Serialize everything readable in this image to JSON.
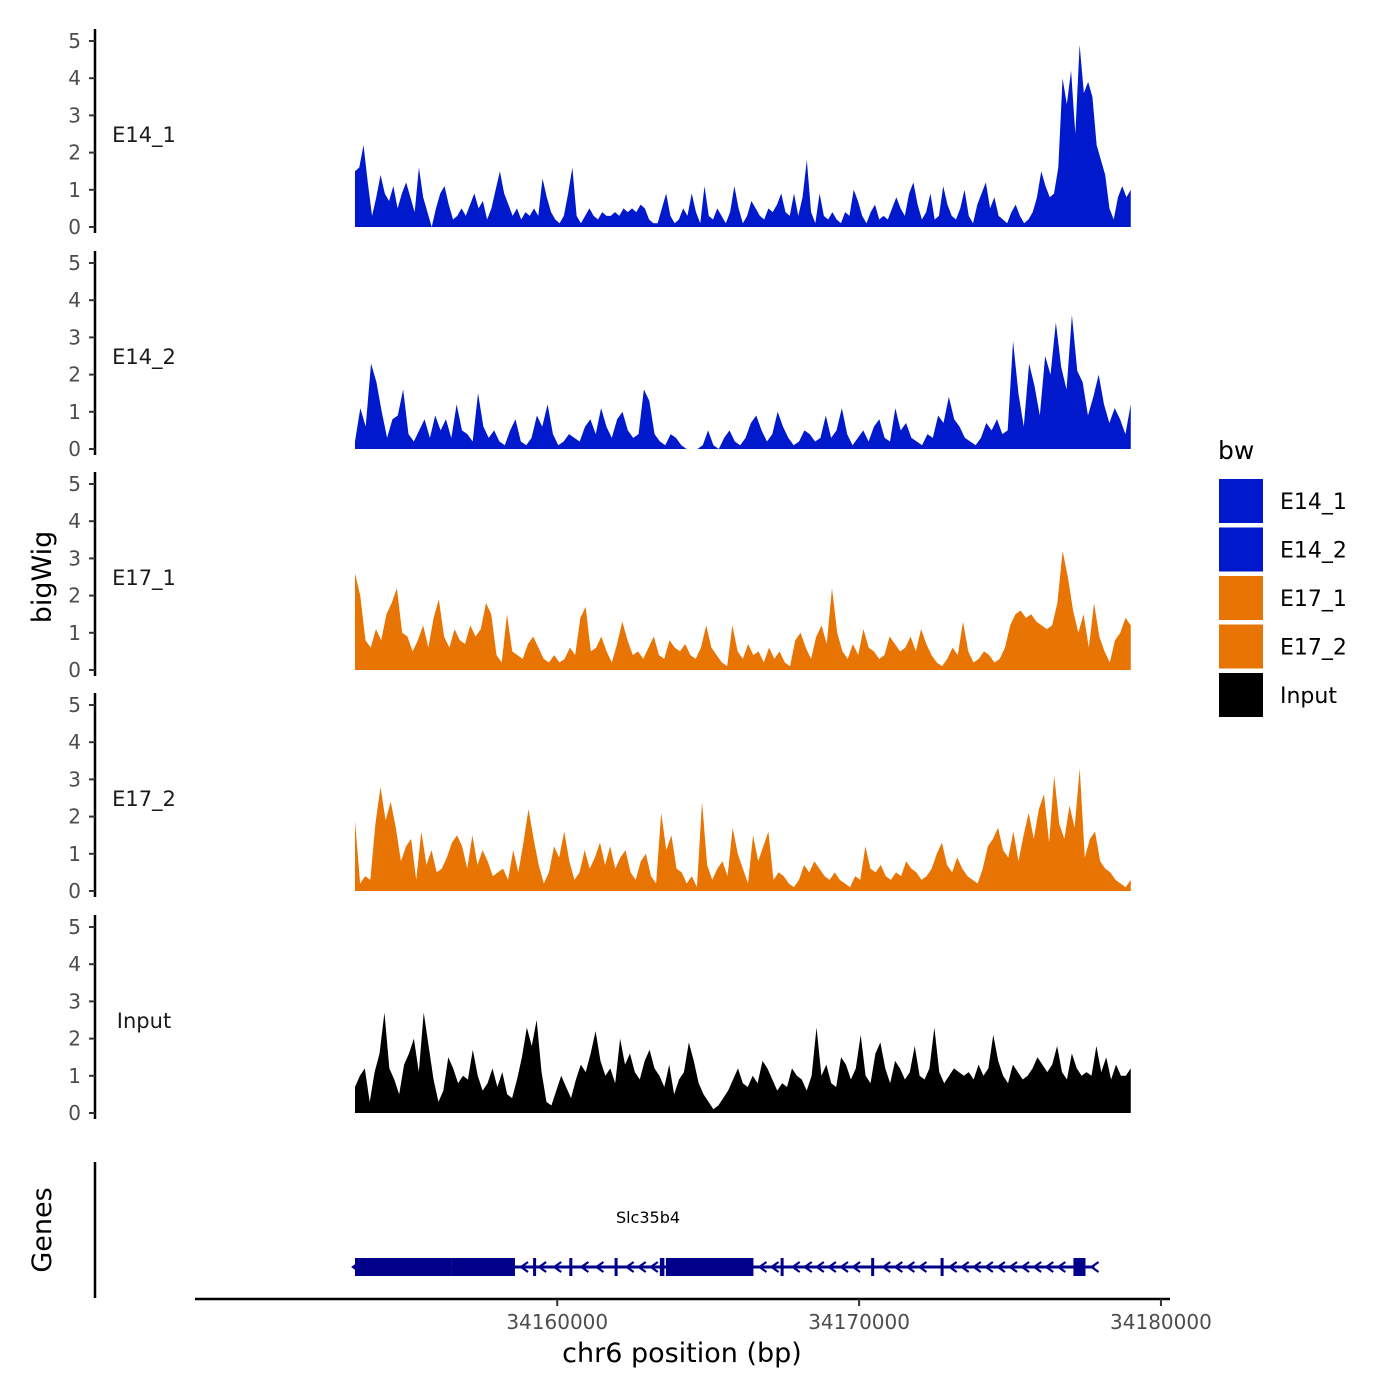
{
  "chart_data": {
    "type": "area",
    "chromosome": "chr6",
    "xlabel": "chr6 position (bp)",
    "ylabel": "bigWig",
    "genes_label": "Genes",
    "x_range": [
      34153300,
      34179000
    ],
    "axis_x_range": [
      34148000,
      34180300
    ],
    "x_ticks": [
      34160000,
      34170000,
      34180000
    ],
    "x_tick_labels": [
      "34160000",
      "34170000",
      "34180000"
    ],
    "y_range": [
      0,
      5
    ],
    "y_ticks": [
      0,
      1,
      2,
      3,
      4,
      5
    ],
    "y_tick_labels": [
      "0",
      "1",
      "2",
      "3",
      "4",
      "5"
    ],
    "legend": {
      "title": "bw",
      "entries": [
        {
          "label": "E14_1",
          "color": "#0019CC"
        },
        {
          "label": "E14_2",
          "color": "#0019CC"
        },
        {
          "label": "E17_1",
          "color": "#E87404"
        },
        {
          "label": "E17_2",
          "color": "#E87404"
        },
        {
          "label": "Input",
          "color": "#000000"
        }
      ]
    },
    "tracks": [
      {
        "name": "E14_1",
        "color": "#0019CC",
        "values": [
          1.5,
          1.6,
          2.2,
          1.2,
          0.3,
          0.8,
          1.4,
          0.9,
          0.7,
          1.1,
          0.5,
          0.9,
          1.2,
          0.8,
          0.4,
          1.6,
          0.8,
          0.4,
          0,
          0.5,
          0.9,
          1.1,
          0.6,
          0.2,
          0.3,
          0.5,
          0.3,
          0.6,
          0.9,
          0.5,
          0.7,
          0.2,
          0.5,
          1.0,
          1.5,
          0.9,
          0.6,
          0.3,
          0.5,
          0.2,
          0.4,
          0.3,
          0.5,
          0.3,
          1.3,
          0.8,
          0.4,
          0.2,
          0.1,
          0.3,
          0.9,
          1.6,
          0.3,
          0.1,
          0.3,
          0.5,
          0.3,
          0.2,
          0.4,
          0.3,
          0.3,
          0.4,
          0.3,
          0.5,
          0.4,
          0.5,
          0.4,
          0.6,
          0.5,
          0.2,
          0.1,
          0.1,
          0.5,
          0.9,
          0.3,
          0.1,
          0.2,
          0.5,
          0.3,
          0.9,
          0.4,
          0.1,
          1.1,
          0.3,
          0.2,
          0.5,
          0.3,
          0.1,
          0.4,
          1.1,
          0.5,
          0.1,
          0.3,
          0.7,
          0.5,
          0.3,
          0.2,
          0.5,
          0.4,
          0.6,
          0.9,
          0.4,
          0.3,
          0.9,
          0.3,
          0.8,
          1.8,
          0.4,
          0.1,
          0.9,
          0.3,
          0.2,
          0.4,
          0.2,
          0.1,
          0.4,
          0.3,
          1.0,
          0.7,
          0.3,
          0.1,
          0.4,
          0.6,
          0.2,
          0.3,
          0.2,
          0.5,
          0.8,
          0.5,
          0.3,
          0.9,
          1.2,
          0.6,
          0.2,
          0.4,
          0.9,
          0.2,
          0.3,
          1.1,
          0.6,
          0.3,
          0.2,
          0.5,
          1.0,
          0.3,
          0.1,
          0.6,
          0.9,
          1.2,
          0.5,
          0.8,
          0.3,
          0.2,
          0.1,
          0.4,
          0.6,
          0.3,
          0.1,
          0.2,
          0.4,
          0.8,
          1.5,
          1.1,
          0.8,
          0.9,
          1.6,
          4.0,
          3.3,
          4.2,
          2.5,
          4.9,
          3.6,
          3.9,
          3.5,
          2.2,
          1.8,
          1.4,
          0.5,
          0.2,
          0.8,
          1.1,
          0.8,
          1.0
        ]
      },
      {
        "name": "E14_2",
        "color": "#0019CC",
        "values": [
          0.2,
          1.1,
          0.6,
          2.3,
          1.8,
          1.0,
          0.3,
          0.8,
          0.9,
          1.6,
          0.4,
          0.2,
          0.5,
          0.8,
          0.3,
          0.9,
          0.5,
          0.8,
          0.3,
          1.2,
          0.5,
          0.4,
          0.2,
          1.5,
          0.6,
          0.3,
          0.5,
          0.2,
          0.1,
          0.5,
          0.8,
          0.2,
          0.1,
          0.3,
          0.9,
          0.6,
          1.2,
          0.4,
          0.1,
          0.2,
          0.4,
          0.3,
          0.2,
          0.6,
          0.8,
          0.4,
          1.1,
          0.6,
          0.3,
          0.8,
          1.0,
          0.5,
          0.3,
          0.4,
          1.6,
          1.3,
          0.4,
          0.2,
          0.1,
          0.4,
          0.3,
          0.1,
          0,
          0,
          0,
          0.1,
          0.5,
          0.1,
          0,
          0.3,
          0.5,
          0.2,
          0.1,
          0.3,
          0.7,
          0.9,
          0.5,
          0.2,
          0.4,
          1.0,
          0.6,
          0.3,
          0.1,
          0.2,
          0.5,
          0.4,
          0.2,
          0.3,
          0.9,
          0.3,
          0.5,
          1.1,
          0.4,
          0.1,
          0.3,
          0.5,
          0.2,
          0.6,
          0.8,
          0.3,
          0.2,
          1.1,
          0.5,
          0.7,
          0.3,
          0.2,
          0.1,
          0.4,
          0.3,
          0.9,
          0.7,
          1.4,
          0.8,
          0.6,
          0.3,
          0.2,
          0.1,
          0.3,
          0.7,
          0.5,
          0.8,
          0.4,
          0.5,
          2.9,
          1.5,
          0.6,
          2.3,
          1.7,
          0.9,
          2.5,
          2.0,
          3.4,
          2.2,
          1.6,
          3.6,
          2.1,
          1.8,
          0.9,
          1.4,
          2.0,
          1.2,
          0.7,
          1.1,
          0.8,
          0.4,
          1.2
        ]
      },
      {
        "name": "E17_1",
        "color": "#E87404",
        "values": [
          2.6,
          2.0,
          0.8,
          0.6,
          1.1,
          0.8,
          1.5,
          1.8,
          2.2,
          1.0,
          0.9,
          0.5,
          0.8,
          1.2,
          0.6,
          1.4,
          1.9,
          0.9,
          0.6,
          1.1,
          0.8,
          0.7,
          1.2,
          0.9,
          1.1,
          1.8,
          1.5,
          0.4,
          0.2,
          1.5,
          0.5,
          0.4,
          0.3,
          0.7,
          0.9,
          0.6,
          0.3,
          0.2,
          0.4,
          0.2,
          0.3,
          0.6,
          0.4,
          1.4,
          1.7,
          0.5,
          0.6,
          0.9,
          0.5,
          0.2,
          0.7,
          1.3,
          0.8,
          0.4,
          0.5,
          0.3,
          0.6,
          0.9,
          0.4,
          0.3,
          0.8,
          0.6,
          0.5,
          0.7,
          0.4,
          0.3,
          0.6,
          1.2,
          0.6,
          0.4,
          0.2,
          0.1,
          1.2,
          0.5,
          0.3,
          0.7,
          0.4,
          0.5,
          0.2,
          0.6,
          0.3,
          0.5,
          0.2,
          0.1,
          0.8,
          1.0,
          0.6,
          0.3,
          0.9,
          1.2,
          0.7,
          2.2,
          1.0,
          0.5,
          0.3,
          0.7,
          0.4,
          1.1,
          0.6,
          0.5,
          0.3,
          0.4,
          0.9,
          0.7,
          0.5,
          0.6,
          0.9,
          0.5,
          1.1,
          0.7,
          0.4,
          0.2,
          0.1,
          0.3,
          0.6,
          0.4,
          1.3,
          0.5,
          0.2,
          0.3,
          0.5,
          0.4,
          0.2,
          0.3,
          0.6,
          1.2,
          1.5,
          1.6,
          1.4,
          1.5,
          1.3,
          1.2,
          1.1,
          1.2,
          1.8,
          3.2,
          2.5,
          1.6,
          1.0,
          1.5,
          0.6,
          1.8,
          0.9,
          0.5,
          0.2,
          0.8,
          1.0,
          1.4,
          1.2
        ]
      },
      {
        "name": "E17_2",
        "color": "#E87404",
        "values": [
          1.9,
          0.2,
          0.4,
          0.3,
          1.8,
          2.8,
          1.9,
          2.4,
          1.7,
          0.8,
          1.2,
          1.4,
          0.3,
          1.6,
          0.7,
          1.1,
          0.5,
          0.6,
          0.9,
          1.3,
          1.5,
          1.2,
          0.6,
          1.5,
          0.7,
          1.1,
          0.8,
          0.4,
          0.5,
          0.6,
          0.3,
          1.1,
          0.5,
          1.3,
          2.2,
          1.4,
          0.7,
          0.2,
          0.5,
          1.2,
          0.9,
          1.6,
          0.8,
          0.3,
          0.5,
          1.1,
          0.6,
          0.9,
          1.3,
          0.7,
          1.2,
          0.6,
          0.9,
          1.1,
          0.5,
          0.3,
          0.8,
          1.0,
          0.4,
          0.2,
          2.1,
          1.1,
          1.5,
          0.6,
          0.5,
          0.2,
          0.4,
          0.1,
          2.4,
          0.7,
          0.3,
          0.6,
          0.8,
          0.4,
          1.7,
          1.0,
          0.6,
          0.2,
          1.5,
          0.8,
          1.2,
          1.6,
          0.3,
          0.5,
          0.4,
          0.2,
          0.1,
          0.3,
          0.7,
          0.5,
          0.8,
          0.6,
          0.4,
          0.3,
          0.5,
          0.3,
          0.2,
          0.1,
          0.4,
          0.3,
          1.2,
          0.6,
          0.5,
          0.7,
          0.4,
          0.3,
          0.5,
          0.4,
          0.8,
          0.6,
          0.5,
          0.3,
          0.4,
          0.6,
          1.0,
          1.3,
          0.7,
          0.5,
          0.9,
          0.6,
          0.4,
          0.3,
          0.2,
          0.6,
          1.2,
          1.4,
          1.7,
          1.1,
          0.9,
          1.6,
          0.8,
          1.5,
          2.1,
          1.4,
          2.2,
          2.6,
          1.3,
          3.1,
          1.8,
          1.4,
          2.3,
          1.7,
          3.3,
          0.9,
          1.4,
          1.6,
          0.8,
          0.6,
          0.5,
          0.3,
          0.2,
          0.1,
          0.3
        ]
      },
      {
        "name": "Input",
        "color": "#000000",
        "values": [
          0.7,
          1.0,
          1.2,
          0.3,
          1.1,
          1.6,
          2.7,
          1.2,
          0.9,
          0.5,
          1.3,
          1.6,
          2.0,
          1.1,
          2.7,
          1.8,
          0.9,
          0.3,
          0.6,
          1.5,
          1.2,
          0.8,
          1.0,
          0.9,
          1.7,
          1.0,
          0.6,
          0.8,
          1.2,
          0.7,
          1.1,
          0.5,
          0.4,
          0.9,
          1.5,
          2.3,
          1.8,
          2.5,
          1.1,
          0.3,
          0.2,
          0.6,
          1.0,
          0.7,
          0.4,
          0.9,
          1.3,
          1.1,
          1.6,
          2.2,
          1.4,
          1.0,
          1.2,
          0.8,
          2.0,
          1.3,
          1.6,
          1.1,
          0.9,
          1.4,
          1.7,
          1.2,
          1.0,
          0.7,
          1.3,
          0.5,
          0.9,
          1.1,
          1.9,
          1.4,
          0.8,
          0.5,
          0.3,
          0.1,
          0.2,
          0.4,
          0.6,
          0.9,
          1.2,
          0.8,
          0.7,
          1.0,
          0.8,
          1.4,
          1.2,
          0.9,
          0.6,
          0.8,
          0.7,
          1.2,
          1.0,
          0.9,
          0.6,
          1.0,
          2.3,
          1.0,
          1.3,
          0.8,
          0.7,
          1.5,
          1.3,
          0.9,
          1.2,
          2.1,
          1.0,
          0.8,
          1.6,
          1.9,
          1.2,
          0.8,
          1.4,
          1.2,
          0.9,
          1.1,
          1.8,
          1.0,
          0.9,
          1.2,
          2.3,
          1.1,
          0.8,
          1.0,
          1.2,
          1.1,
          1.0,
          1.1,
          0.9,
          1.3,
          1.0,
          1.2,
          2.1,
          1.4,
          1.0,
          0.8,
          1.3,
          1.1,
          0.9,
          1.0,
          1.2,
          1.5,
          1.3,
          1.1,
          1.3,
          1.8,
          1.1,
          0.9,
          1.6,
          1.2,
          1.0,
          1.1,
          1.0,
          1.8,
          1.1,
          1.5,
          0.9,
          1.3,
          1.0,
          1.0,
          1.2
        ]
      }
    ],
    "gene": {
      "name": "Slc35b4",
      "strand": "-",
      "color": "#00008B",
      "start": 34153300,
      "end": 34177800,
      "exons": [
        [
          34153300,
          34156500
        ],
        [
          34156500,
          34158600
        ],
        [
          34159200,
          34159300
        ],
        [
          34160400,
          34160500
        ],
        [
          34161900,
          34162000
        ],
        [
          34163400,
          34163550
        ],
        [
          34163600,
          34166500
        ],
        [
          34167400,
          34167500
        ],
        [
          34170400,
          34170500
        ],
        [
          34172700,
          34172800
        ],
        [
          34177100,
          34177500
        ]
      ],
      "arrows_x": [
        34158900,
        34159500,
        34160000,
        34160900,
        34161400,
        34162400,
        34162800,
        34163200,
        34166800,
        34167200,
        34167900,
        34168300,
        34168700,
        34169100,
        34169500,
        34169900,
        34170900,
        34171300,
        34171700,
        34172100,
        34173100,
        34173500,
        34173900,
        34174300,
        34174700,
        34175100,
        34175500,
        34175900,
        34176300,
        34176700
      ]
    }
  }
}
